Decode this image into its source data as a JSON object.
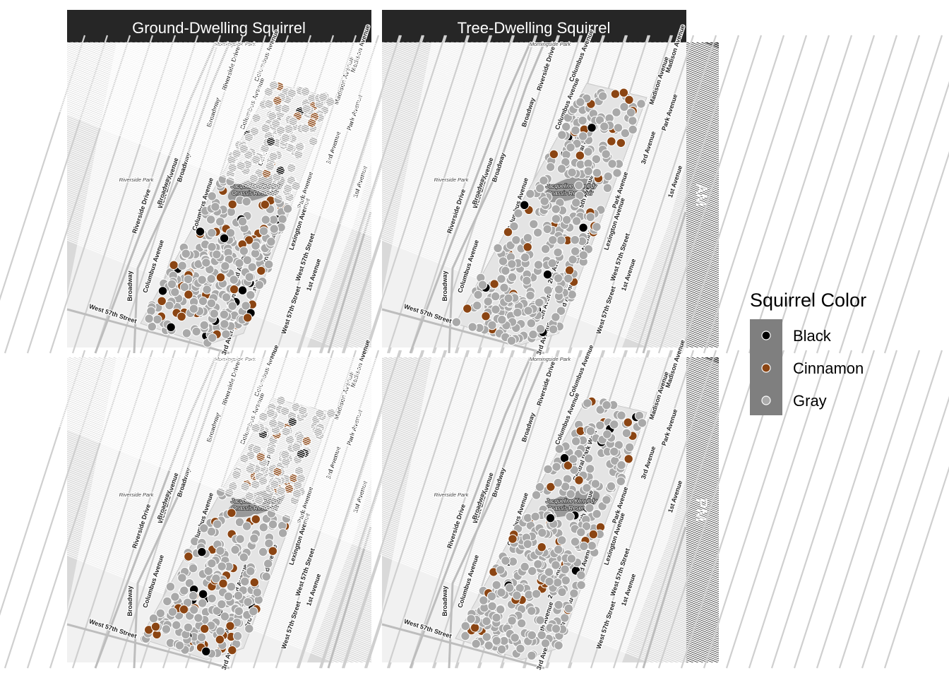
{
  "chart_data": {
    "type": "scatter",
    "title": "",
    "columns": [
      "Ground-Dwelling Squirrel",
      "Tree-Dwelling Squirrel"
    ],
    "rows": [
      "AM",
      "PM"
    ],
    "legend": {
      "title": "Squirrel Color",
      "position": "right",
      "items": [
        {
          "label": "Black",
          "color": "#000000"
        },
        {
          "label": "Cinnamon",
          "color": "#8B4513"
        },
        {
          "label": "Gray",
          "color": "#A9A9A9"
        }
      ]
    },
    "basemap": {
      "streets": [
        "Morningside Park",
        "Riverside Drive",
        "Broadway",
        "Columbus Avenue",
        "Central Park West",
        "Madison Avenue",
        "Park Avenue",
        "3rd Avenue",
        "1st Avenue",
        "West End Avenue",
        "Riverside Park",
        "Lexington Avenue",
        "5th Avenue",
        "2nd Avenue",
        "West 57th Street",
        "Jacqueline Kennedy",
        "Onassis Reservoir"
      ]
    },
    "panels": [
      {
        "column": "Ground-Dwelling Squirrel",
        "row": "AM",
        "gray": 330,
        "cinnamon": 44,
        "black": 18
      },
      {
        "column": "Tree-Dwelling Squirrel",
        "row": "AM",
        "gray": 300,
        "cinnamon": 30,
        "black": 10
      },
      {
        "column": "Ground-Dwelling Squirrel",
        "row": "PM",
        "gray": 300,
        "cinnamon": 50,
        "black": 14
      },
      {
        "column": "Tree-Dwelling Squirrel",
        "row": "PM",
        "gray": 330,
        "cinnamon": 32,
        "black": 9
      }
    ]
  }
}
